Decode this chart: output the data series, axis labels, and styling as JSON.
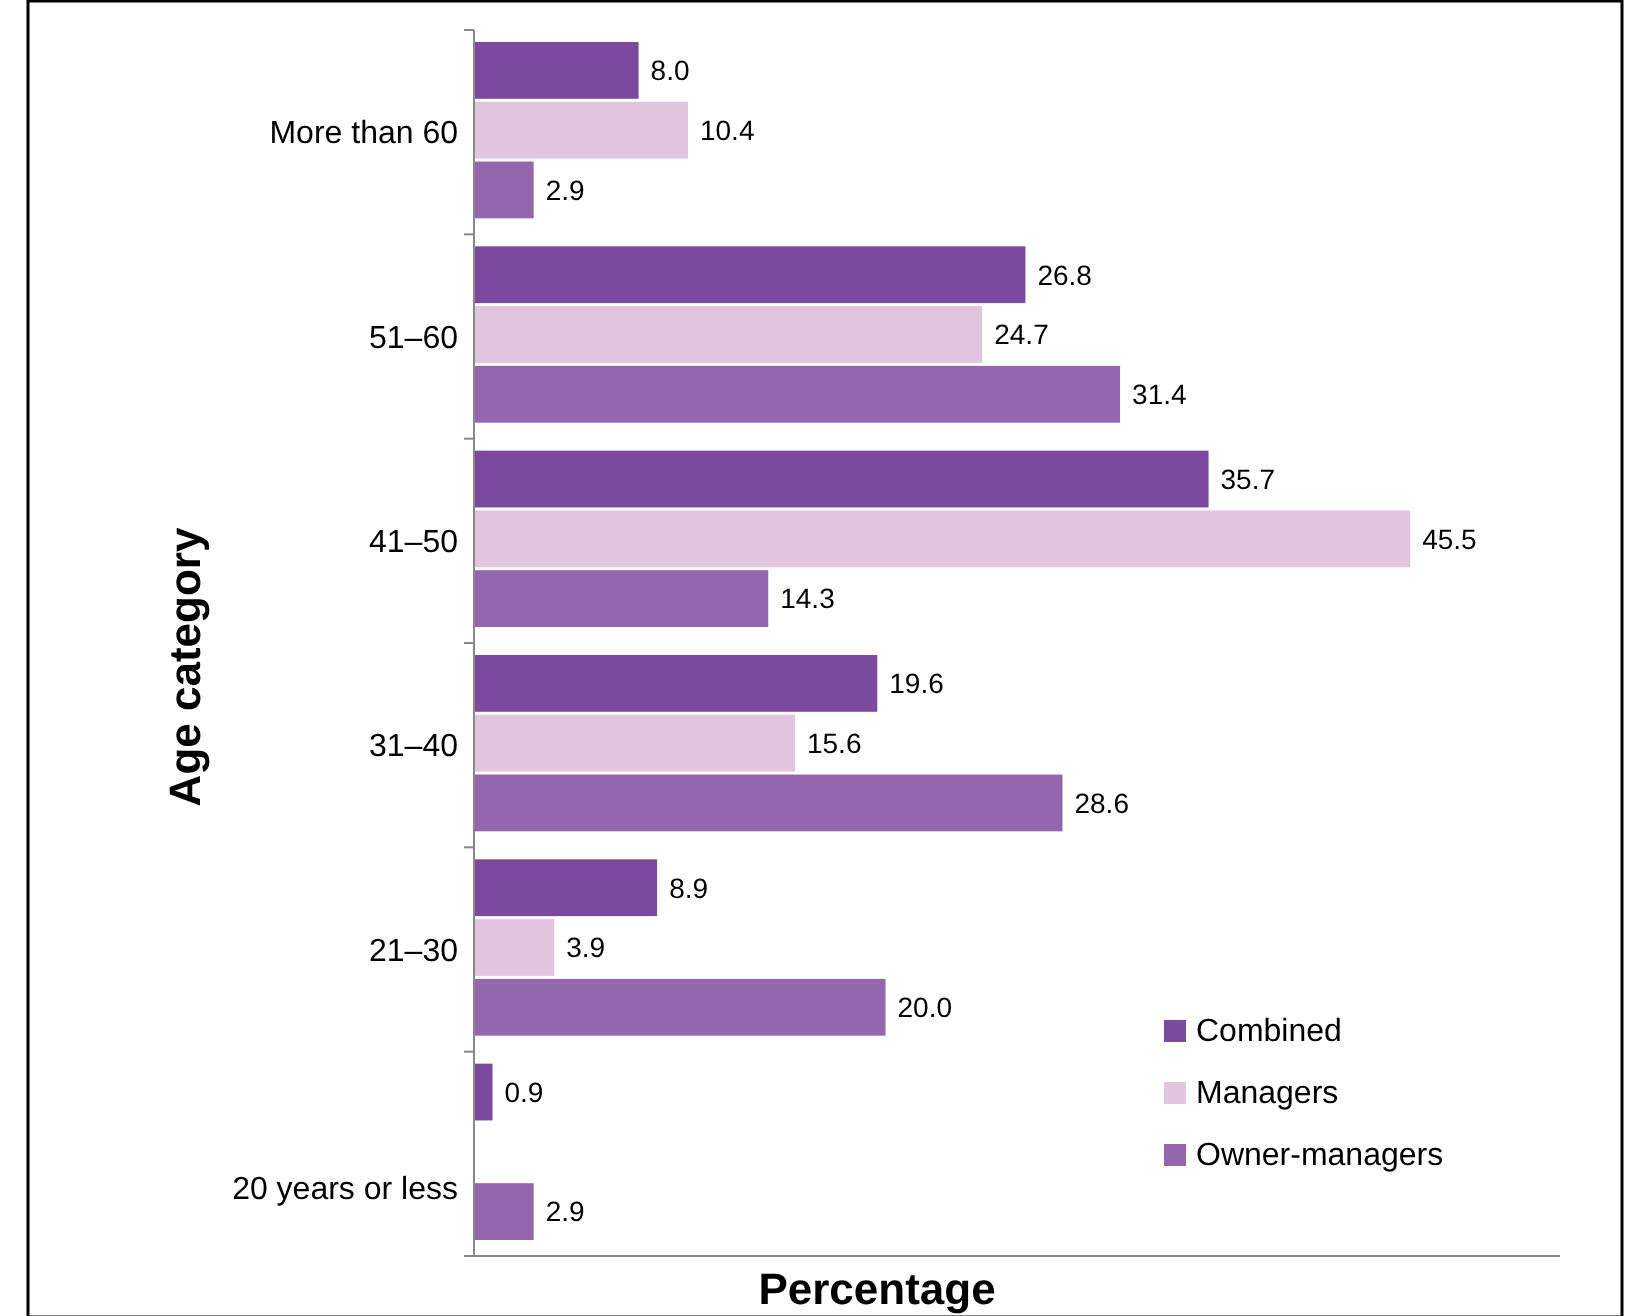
{
  "chart_data": {
    "type": "bar",
    "orientation": "horizontal",
    "xlabel": "Percentage",
    "ylabel": "Age category",
    "categories": [
      "More than 60",
      "51–60",
      "41–50",
      "31–40",
      "21–30",
      "20 years or less"
    ],
    "series": [
      {
        "name": "Combined",
        "color": "#7b4a9e",
        "values": [
          8,
          26.8,
          35.7,
          19.6,
          8.9,
          0.9
        ],
        "value_labels": [
          "8.0",
          "26.8",
          "35.7",
          "19.6",
          "8.9",
          "0.9"
        ]
      },
      {
        "name": "Managers",
        "color": "#e3c4df",
        "values": [
          10.4,
          24.7,
          45.5,
          15.6,
          3.9,
          null
        ],
        "value_labels": [
          "10.4",
          "24.7",
          "45.5",
          "15.6",
          "3.9",
          null
        ]
      },
      {
        "name": "Owner-managers",
        "color": "#9466ad",
        "values": [
          2.9,
          31.4,
          14.3,
          28.6,
          20,
          2.9
        ],
        "value_labels": [
          "2.9",
          "31.4",
          "14.3",
          "28.6",
          "20.0",
          "2.9"
        ]
      }
    ],
    "legend": "bottom right",
    "tick_labels": "y"
  }
}
